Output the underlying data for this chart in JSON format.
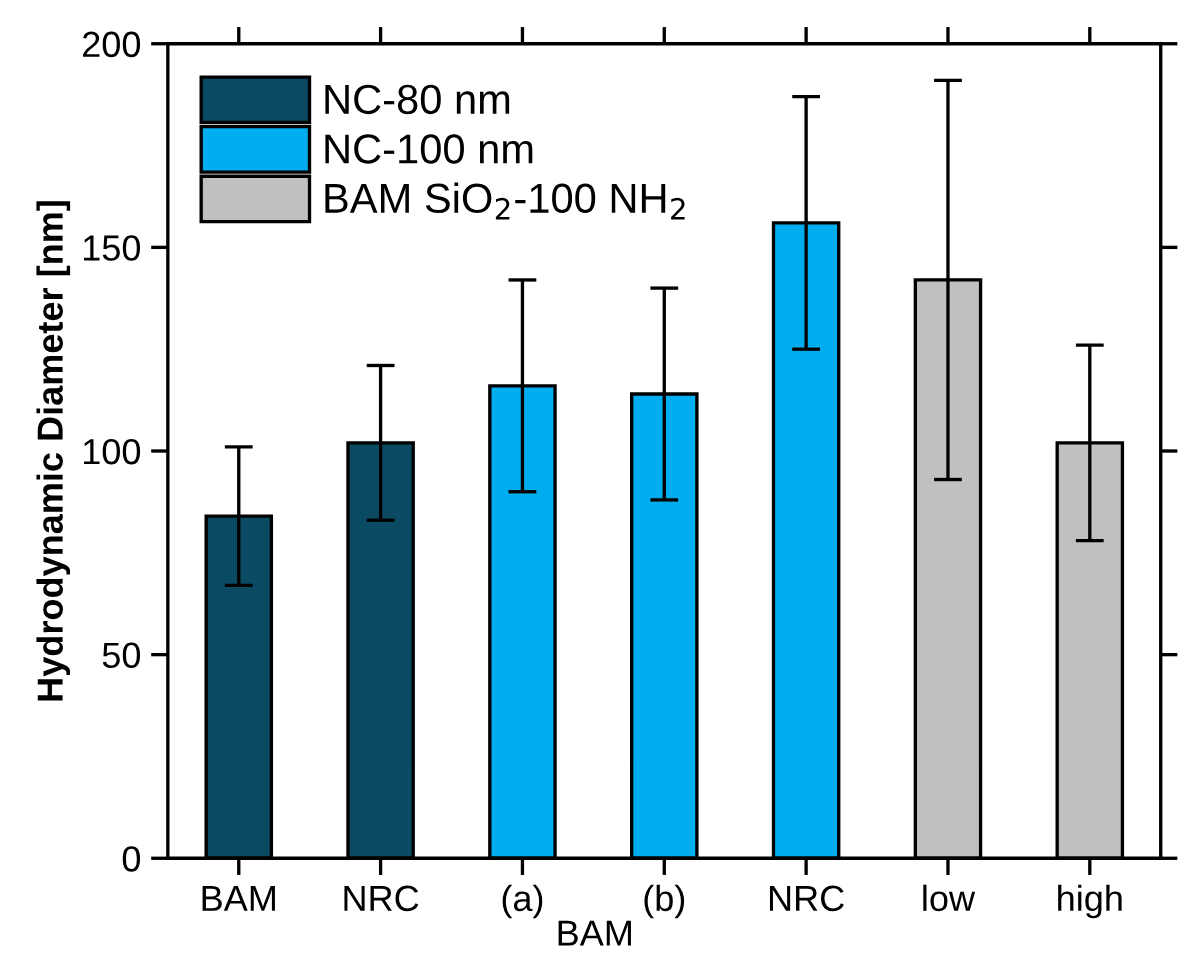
{
  "chart_data": {
    "type": "bar",
    "ylabel": "Hydrodynamic Diameter [nm]",
    "xlabel": "BAM",
    "categories": [
      "BAM",
      "NRC",
      "(a)",
      "(b)",
      "NRC",
      "low",
      "high"
    ],
    "series": [
      {
        "name": "NC-80 nm",
        "color": "#0b4a63",
        "values": [
          84,
          102,
          null,
          null,
          null,
          null,
          null
        ],
        "errors": [
          17,
          19,
          null,
          null,
          null,
          null,
          null
        ]
      },
      {
        "name": "NC-100 nm",
        "color": "#00aeef",
        "values": [
          null,
          null,
          116,
          114,
          156,
          null,
          null
        ],
        "errors": [
          null,
          null,
          26,
          26,
          31,
          null,
          null
        ]
      },
      {
        "name": "BAM SiO$_{2}$-100 NH$_{2}$",
        "color": "#c0c0c0",
        "values": [
          null,
          null,
          null,
          null,
          null,
          142,
          102
        ],
        "errors": [
          null,
          null,
          null,
          null,
          null,
          49,
          24
        ]
      }
    ],
    "ylim": [
      0,
      200
    ],
    "yticks": [
      0,
      50,
      100,
      150,
      200
    ],
    "grid": false,
    "legend": "top left"
  }
}
